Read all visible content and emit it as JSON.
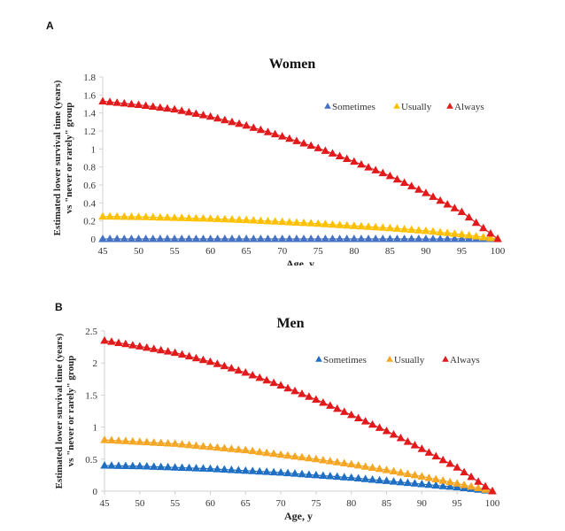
{
  "figure": {
    "panels": [
      "A",
      "B"
    ]
  },
  "chart_data": [
    {
      "type": "scatter",
      "panel": "A",
      "title": "Women",
      "xlabel": "Age, y",
      "ylabel_line1": "Estimated lower survival time (years)",
      "ylabel_line2": "vs \"never or rarely\" group",
      "xlim": [
        45,
        100
      ],
      "ylim": [
        0,
        1.8
      ],
      "xticks": [
        45,
        50,
        55,
        60,
        65,
        70,
        75,
        80,
        85,
        90,
        95,
        100
      ],
      "yticks": [
        0,
        0.2,
        0.4,
        0.6,
        0.8,
        1,
        1.2,
        1.4,
        1.6,
        1.8
      ],
      "ytick_labels": [
        "0",
        "0.2",
        "0.4",
        "0.6",
        "0.8",
        "1",
        "1.2",
        "1.4",
        "1.6",
        "1.8"
      ],
      "legend_position": "top-right",
      "x_key_points": [
        45,
        50,
        55,
        60,
        65,
        70,
        75,
        80,
        85,
        90,
        95,
        100
      ],
      "series": [
        {
          "name": "Sometimes",
          "color": "#4472C4",
          "marker": "triangle",
          "key_values": [
            0,
            0,
            0,
            0,
            0,
            0,
            0,
            0,
            0,
            0,
            0,
            0
          ]
        },
        {
          "name": "Usually",
          "color": "#FFC000",
          "marker": "triangle",
          "key_values": [
            0.25,
            0.245,
            0.235,
            0.225,
            0.21,
            0.19,
            0.17,
            0.145,
            0.12,
            0.09,
            0.05,
            0
          ]
        },
        {
          "name": "Always",
          "color": "#E31A1C",
          "marker": "triangle",
          "key_values": [
            1.53,
            1.49,
            1.44,
            1.36,
            1.26,
            1.14,
            1.01,
            0.86,
            0.7,
            0.51,
            0.3,
            0
          ]
        }
      ]
    },
    {
      "type": "scatter",
      "panel": "B",
      "title": "Men",
      "xlabel": "Age, y",
      "ylabel_line1": "Estimated lower survival time (years)",
      "ylabel_line2": "vs \"never or rarely\" group",
      "xlim": [
        45,
        100
      ],
      "ylim": [
        0,
        2.5
      ],
      "xticks": [
        45,
        50,
        55,
        60,
        65,
        70,
        75,
        80,
        85,
        90,
        95,
        100
      ],
      "yticks": [
        0,
        0.5,
        1,
        1.5,
        2,
        2.5
      ],
      "ytick_labels": [
        "0",
        "0.5",
        "1",
        "1.5",
        "2",
        "2.5"
      ],
      "legend_position": "top-right",
      "x_key_points": [
        45,
        50,
        55,
        60,
        65,
        70,
        75,
        80,
        85,
        90,
        95,
        100
      ],
      "series": [
        {
          "name": "Sometimes",
          "color": "#1F6FC5",
          "marker": "triangle",
          "key_values": [
            0.4,
            0.39,
            0.37,
            0.35,
            0.32,
            0.29,
            0.25,
            0.21,
            0.16,
            0.11,
            0.06,
            0
          ]
        },
        {
          "name": "Usually",
          "color": "#F5A623",
          "marker": "triangle",
          "key_values": [
            0.8,
            0.77,
            0.74,
            0.69,
            0.64,
            0.57,
            0.5,
            0.42,
            0.33,
            0.23,
            0.12,
            0
          ]
        },
        {
          "name": "Always",
          "color": "#E31A1C",
          "marker": "triangle",
          "key_values": [
            2.35,
            2.26,
            2.16,
            2.02,
            1.85,
            1.65,
            1.43,
            1.19,
            0.94,
            0.66,
            0.37,
            0
          ]
        }
      ]
    }
  ]
}
